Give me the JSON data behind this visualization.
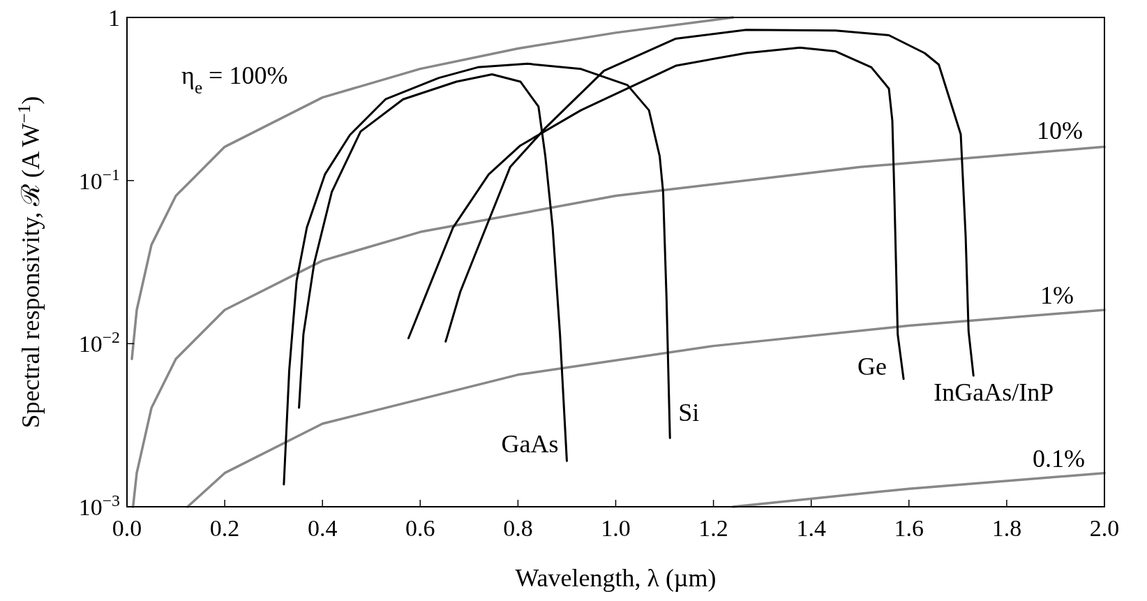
{
  "chart_data": {
    "type": "line",
    "xlabel": "Wavelength, λ (µm)",
    "ylabel": "Spectral responsivity, ℛ (A W$^{−1}$)",
    "log": true,
    "line_style": "solid",
    "xlim": [
      0,
      2
    ],
    "ylim": [
      0.001,
      1
    ],
    "xticks": [
      {
        "value": 0,
        "label": "0.0"
      },
      0.2,
      0.4,
      0.6,
      0.8,
      {
        "value": 1,
        "label": "1.0"
      },
      1.2,
      1.4,
      1.6,
      1.8,
      {
        "value": 2,
        "label": "2.0"
      }
    ],
    "yticks": [
      {
        "value": 0.001,
        "label": "10$^{−3}$"
      },
      {
        "value": 0.01,
        "label": "10$^{−2}$"
      },
      {
        "value": 0.1,
        "label": "10$^{−1}$"
      },
      1
    ],
    "series": [
      {
        "name": "η$_{e}$ = 100%",
        "color": "#888888",
        "x": [
          0.01,
          0.02,
          0.05,
          0.1,
          0.2,
          0.4,
          0.6,
          0.8,
          1.0,
          1.24
        ],
        "values": [
          0.00806,
          0.0161,
          0.0403,
          0.0806,
          0.161,
          0.323,
          0.484,
          0.645,
          0.806,
          1.0
        ]
      },
      {
        "name": "10%",
        "color": "#888888",
        "x": [
          0.0124,
          0.02,
          0.05,
          0.1,
          0.2,
          0.4,
          0.6,
          1.0,
          1.5,
          2.0
        ],
        "values": [
          0.001,
          0.00161,
          0.00403,
          0.00806,
          0.0161,
          0.0323,
          0.0484,
          0.0806,
          0.121,
          0.161
        ]
      },
      {
        "name": "1%",
        "color": "#888888",
        "x": [
          0.124,
          0.2,
          0.4,
          0.8,
          1.2,
          1.6,
          2.0
        ],
        "values": [
          0.001,
          0.00161,
          0.00323,
          0.00645,
          0.00968,
          0.0129,
          0.0161
        ]
      },
      {
        "name": "0.1%",
        "color": "#888888",
        "x": [
          1.24,
          1.6,
          2.0
        ],
        "values": [
          0.001,
          0.00129,
          0.00161
        ]
      },
      {
        "name": "GaAs",
        "color": "#000000",
        "x": [
          0.352,
          0.361,
          0.383,
          0.419,
          0.478,
          0.565,
          0.674,
          0.747,
          0.805,
          0.842,
          0.856,
          0.871,
          0.886,
          0.9
        ],
        "values": [
          0.00405,
          0.0114,
          0.0311,
          0.0851,
          0.2,
          0.315,
          0.404,
          0.448,
          0.404,
          0.284,
          0.141,
          0.0515,
          0.0114,
          0.00191
        ]
      },
      {
        "name": "Si",
        "color": "#000000",
        "x": [
          0.321,
          0.332,
          0.347,
          0.368,
          0.405,
          0.456,
          0.529,
          0.638,
          0.718,
          0.82,
          0.929,
          1.024,
          1.068,
          1.09,
          1.097,
          1.104,
          1.111
        ],
        "values": [
          0.00137,
          0.00687,
          0.0242,
          0.0515,
          0.109,
          0.19,
          0.315,
          0.426,
          0.495,
          0.52,
          0.483,
          0.385,
          0.27,
          0.141,
          0.0851,
          0.0188,
          0.00264
        ]
      },
      {
        "name": "Ge",
        "color": "#000000",
        "x": [
          0.576,
          0.623,
          0.667,
          0.74,
          0.805,
          0.929,
          1.124,
          1.267,
          1.377,
          1.45,
          1.523,
          1.559,
          1.566,
          1.57,
          1.577,
          1.589
        ],
        "values": [
          0.0108,
          0.0242,
          0.0514,
          0.109,
          0.164,
          0.27,
          0.507,
          0.605,
          0.653,
          0.62,
          0.495,
          0.366,
          0.233,
          0.0851,
          0.0114,
          0.00608
        ]
      },
      {
        "name": "InGaAs/InP",
        "color": "#000000",
        "x": [
          0.652,
          0.682,
          0.711,
          0.784,
          0.856,
          0.976,
          1.122,
          1.267,
          1.45,
          1.559,
          1.632,
          1.661,
          1.703,
          1.706,
          1.716,
          1.722,
          1.732
        ],
        "values": [
          0.0103,
          0.0208,
          0.0344,
          0.121,
          0.21,
          0.471,
          0.74,
          0.839,
          0.831,
          0.778,
          0.605,
          0.514,
          0.205,
          0.192,
          0.0457,
          0.0119,
          0.00637
        ]
      }
    ]
  }
}
